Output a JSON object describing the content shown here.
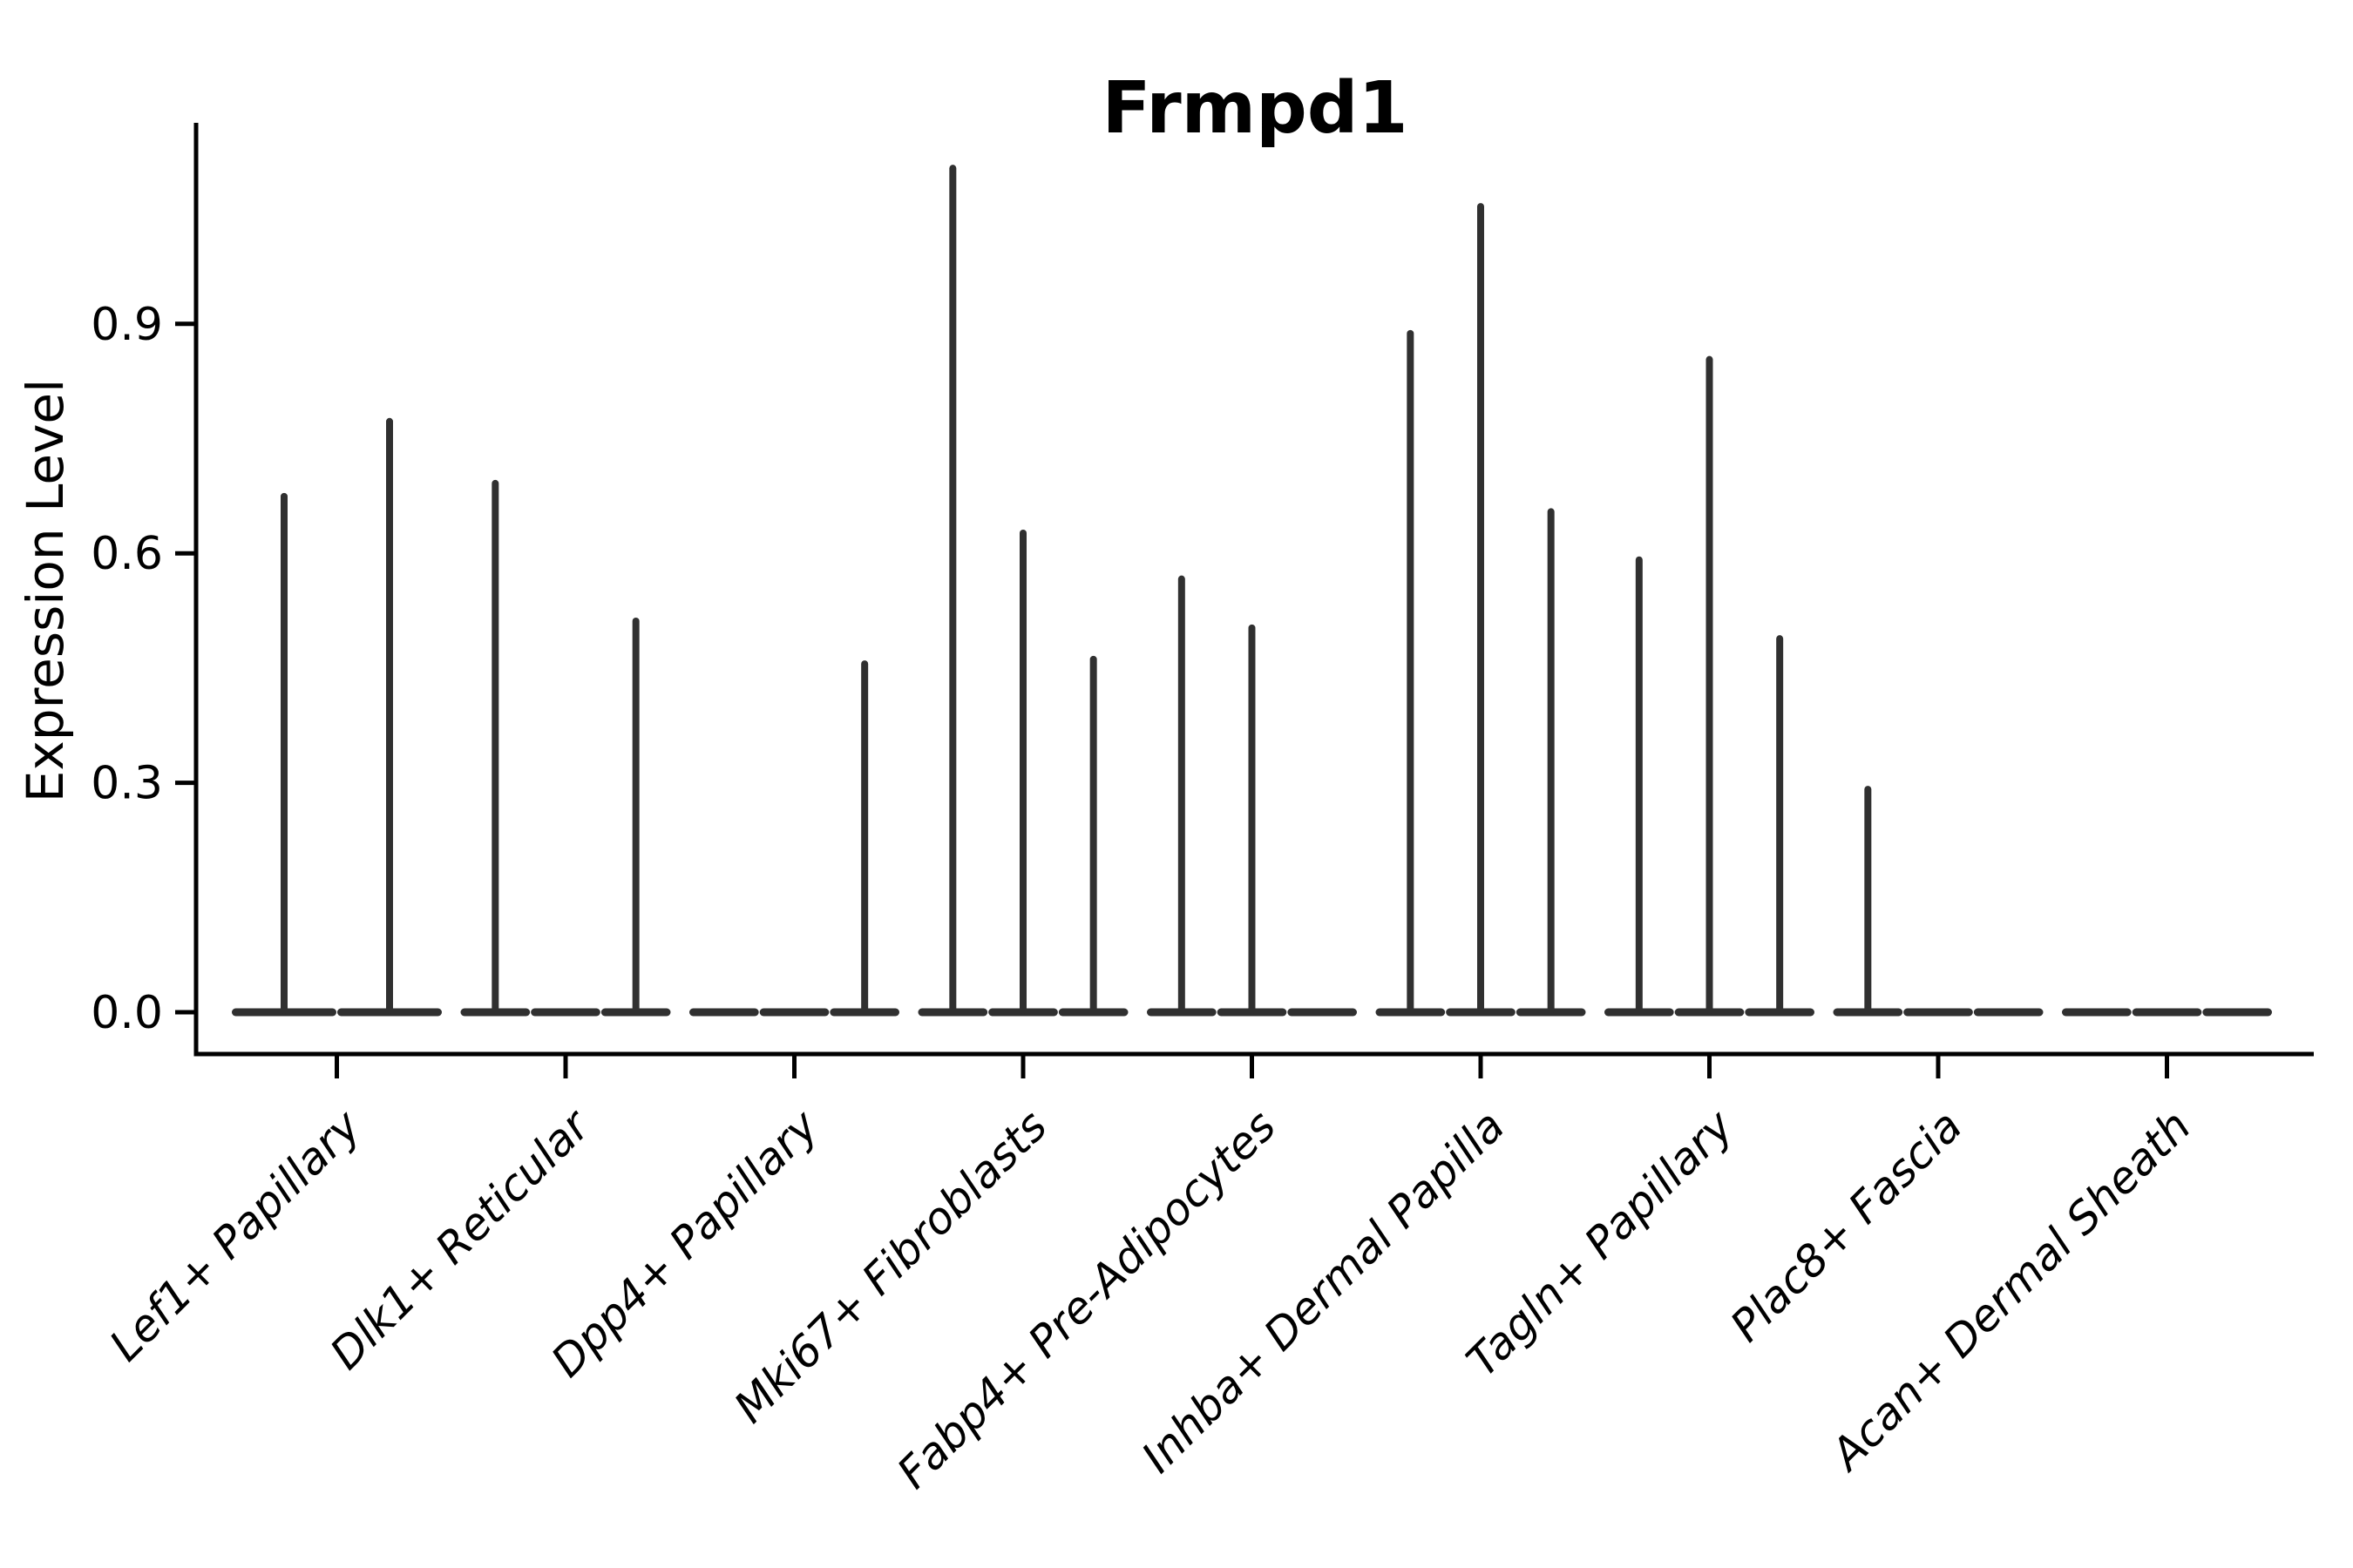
{
  "title": "Frmpd1",
  "chart_data": {
    "type": "violin",
    "title": "Frmpd1",
    "ylabel": "Expression Level",
    "xlabel": "",
    "ylim": [
      -0.05,
      1.16
    ],
    "yticks": [
      0.0,
      0.3,
      0.6,
      0.9
    ],
    "ytick_labels": [
      "0.0",
      "0.3",
      "0.6",
      "0.9"
    ],
    "grid": false,
    "legend": "none",
    "categories": [
      {
        "label": "Lef1+ Papillary",
        "violin_maxima": [
          0.679,
          0.777
        ]
      },
      {
        "label": "Dlk1+ Reticular",
        "violin_maxima": [
          0.696,
          0,
          0.516
        ]
      },
      {
        "label": "Dpp4+ Papillary",
        "violin_maxima": [
          0,
          0,
          0.46
        ]
      },
      {
        "label": "Mki67+ Fibroblasts",
        "violin_maxima": [
          1.108,
          0.631,
          0.466
        ]
      },
      {
        "label": "Fabp4+ Pre-Adipocytes",
        "violin_maxima": [
          0.571,
          0.507,
          0
        ]
      },
      {
        "label": "Inhba+ Dermal Papilla",
        "violin_maxima": [
          0.892,
          1.058,
          0.659
        ]
      },
      {
        "label": "Tagln+ Papillary",
        "violin_maxima": [
          0.596,
          0.858,
          0.493
        ]
      },
      {
        "label": "Plac8+ Fascia",
        "violin_maxima": [
          0.296,
          0,
          0
        ]
      },
      {
        "label": "Acan+ Dermal Sheath",
        "violin_maxima": [
          0,
          0,
          0
        ]
      }
    ],
    "colors": {
      "violin": "#303030",
      "axis": "#000000",
      "text": "#000000",
      "background": "#ffffff"
    }
  }
}
